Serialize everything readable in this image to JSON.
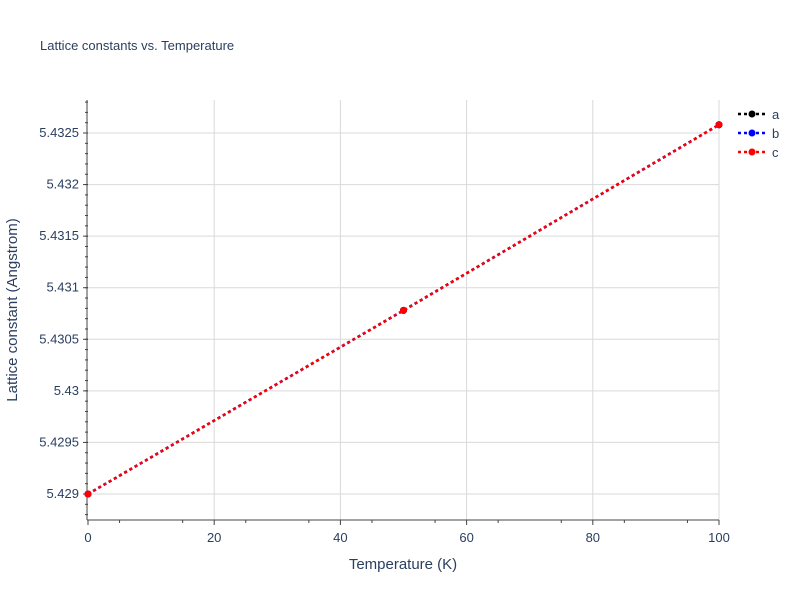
{
  "chart_data": {
    "type": "line",
    "title": "Lattice constants vs. Temperature",
    "xlabel": "Temperature (K)",
    "ylabel": "Lattice constant (Angstrom)",
    "xlim": [
      0,
      100
    ],
    "ylim": [
      5.42875,
      5.43282
    ],
    "x_ticks": [
      0,
      20,
      40,
      60,
      80,
      100
    ],
    "y_ticks": [
      5.429,
      5.4295,
      5.43,
      5.4305,
      5.431,
      5.4315,
      5.432,
      5.4325
    ],
    "y_tick_labels": [
      "5.429",
      "5.4295",
      "5.43",
      "5.4305",
      "5.431",
      "5.4315",
      "5.432",
      "5.4325"
    ],
    "grid": true,
    "legend_position": "top-right",
    "x": [
      0,
      50,
      100
    ],
    "series": [
      {
        "name": "a",
        "color": "#000000",
        "values": [
          5.429,
          5.43078,
          5.43258
        ]
      },
      {
        "name": "b",
        "color": "#0000ff",
        "values": [
          5.429,
          5.43078,
          5.43258
        ]
      },
      {
        "name": "c",
        "color": "#ff0000",
        "values": [
          5.429,
          5.43078,
          5.43258
        ]
      }
    ]
  }
}
